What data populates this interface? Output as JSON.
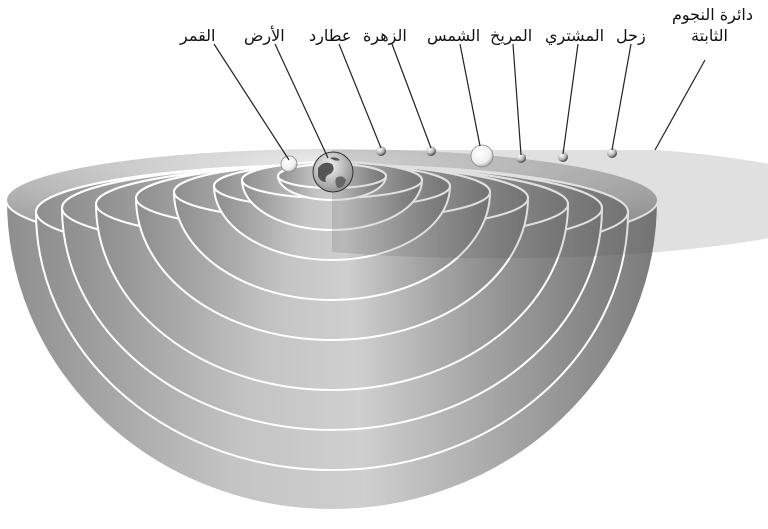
{
  "diagram": {
    "labels": {
      "moon": "القمر",
      "earth": "الأرض",
      "mercury": "عطارد",
      "venus": "الزهرة",
      "sun": "الشمس",
      "mars": "المريخ",
      "jupiter": "المشتري",
      "saturn": "زحل",
      "fixed_stars_line1": "دائرة النجوم",
      "fixed_stars_line2": "الثابتة"
    }
  }
}
